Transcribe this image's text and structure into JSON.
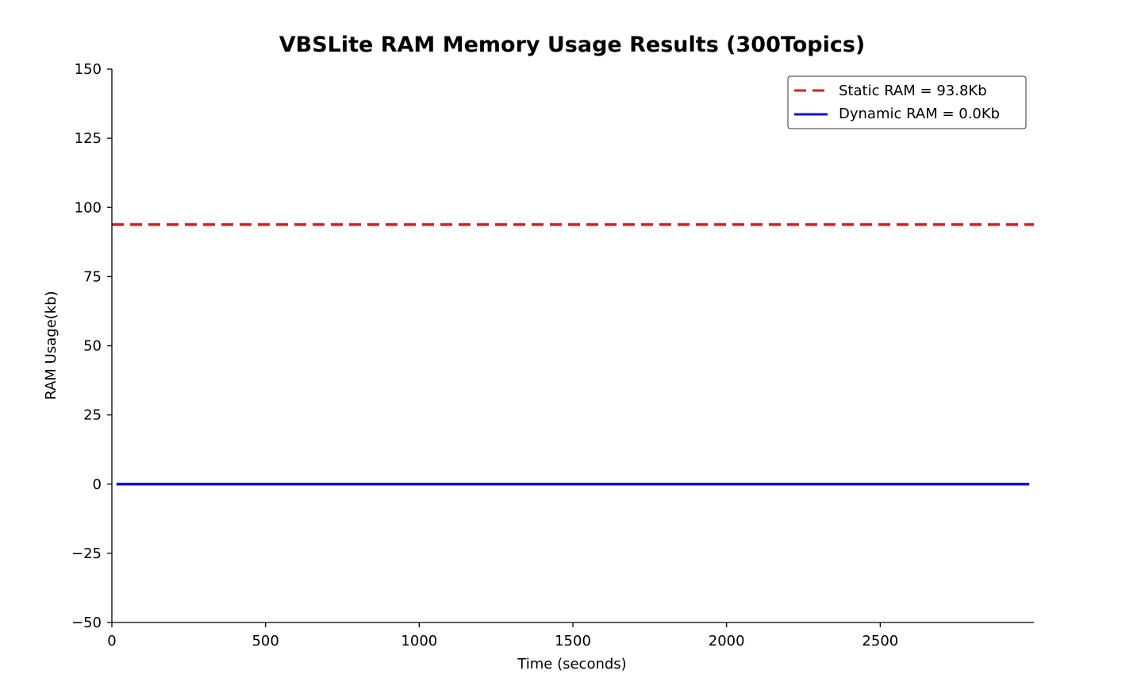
{
  "chart_data": {
    "type": "line",
    "title": "VBSLite RAM Memory Usage Results (300Topics)",
    "xlabel": "Time (seconds)",
    "ylabel": "RAM Usage(kb)",
    "xlim": [
      0,
      3000
    ],
    "ylim": [
      -50,
      150
    ],
    "xticks": [
      0,
      500,
      1000,
      1500,
      2000,
      2500
    ],
    "xtick_labels": [
      "0",
      "500",
      "1000",
      "1500",
      "2000",
      "2500"
    ],
    "yticks": [
      150,
      125,
      100,
      75,
      50,
      25,
      0,
      -25,
      -50
    ],
    "ytick_labels": [
      "150",
      "125",
      "100",
      "75",
      "50",
      "25",
      "0",
      "−25",
      "−50"
    ],
    "grid": false,
    "legend_position": "top-right",
    "series": [
      {
        "name": "Static RAM = 93.8Kb",
        "style": "dashed",
        "color": "#d62020",
        "x": [
          0,
          3000
        ],
        "y": [
          93.8,
          93.8
        ]
      },
      {
        "name": "Dynamic RAM = 0.0Kb",
        "style": "solid",
        "color": "#1010e0",
        "x": [
          15,
          2985
        ],
        "y": [
          0,
          0
        ]
      }
    ]
  }
}
